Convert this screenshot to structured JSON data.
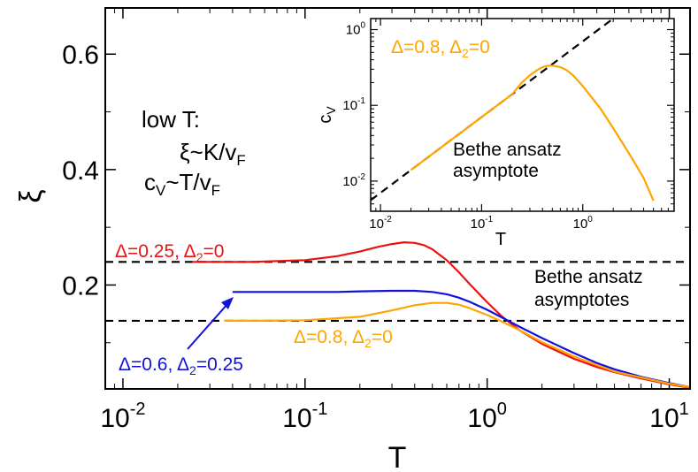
{
  "chart_data": [
    {
      "type": "line",
      "xscale": "log",
      "xlim": [
        0.008,
        13
      ],
      "ylim": [
        0.02,
        0.68
      ],
      "xlabel": "T",
      "ylabel": "ξ",
      "x_ticks": [
        {
          "value": 0.01,
          "base": "10",
          "exp": "-2"
        },
        {
          "value": 0.1,
          "base": "10",
          "exp": "-1"
        },
        {
          "value": 1,
          "base": "10",
          "exp": "0"
        },
        {
          "value": 10,
          "base": "10",
          "exp": "1"
        }
      ],
      "y_ticks": [
        {
          "value": 0.2,
          "label": "0.2"
        },
        {
          "value": 0.4,
          "label": "0.4"
        },
        {
          "value": 0.6,
          "label": "0.6"
        }
      ],
      "series": [
        {
          "name": "Δ=0.25, Δ2=0",
          "color": "#ee1111",
          "x": [
            0.024,
            0.05,
            0.1,
            0.15,
            0.2,
            0.25,
            0.3,
            0.35,
            0.4,
            0.45,
            0.5,
            0.6,
            0.7,
            0.8,
            1.0,
            1.2,
            1.5,
            2,
            3,
            4,
            5,
            7,
            10,
            13
          ],
          "y": [
            0.24,
            0.24,
            0.243,
            0.25,
            0.258,
            0.266,
            0.271,
            0.274,
            0.273,
            0.269,
            0.262,
            0.243,
            0.222,
            0.202,
            0.17,
            0.146,
            0.122,
            0.098,
            0.072,
            0.058,
            0.049,
            0.038,
            0.028,
            0.022
          ]
        },
        {
          "name": "Δ=0.6, Δ2=0.25",
          "color": "#1111dd",
          "x": [
            0.04,
            0.06,
            0.1,
            0.15,
            0.2,
            0.3,
            0.4,
            0.5,
            0.6,
            0.7,
            0.8,
            1.0,
            1.2,
            1.5,
            2,
            3,
            4,
            5,
            7,
            10,
            13
          ],
          "y": [
            0.188,
            0.188,
            0.188,
            0.188,
            0.189,
            0.19,
            0.19,
            0.188,
            0.184,
            0.178,
            0.171,
            0.157,
            0.144,
            0.128,
            0.108,
            0.082,
            0.065,
            0.054,
            0.041,
            0.03,
            0.023
          ]
        },
        {
          "name": "Δ=0.8, Δ2=0",
          "color": "#ffa500",
          "x": [
            0.036,
            0.06,
            0.1,
            0.2,
            0.3,
            0.4,
            0.5,
            0.6,
            0.7,
            0.8,
            1.0,
            1.2,
            1.5,
            2,
            3,
            5,
            10,
            13
          ],
          "y": [
            0.138,
            0.138,
            0.139,
            0.145,
            0.156,
            0.165,
            0.169,
            0.169,
            0.166,
            0.16,
            0.148,
            0.137,
            0.122,
            0.101,
            0.076,
            0.05,
            0.029,
            0.023
          ]
        }
      ],
      "asymptotes": [
        {
          "y": 0.24,
          "x_from": 0.008,
          "x_to": 13
        },
        {
          "y": 0.138,
          "x_from": 0.008,
          "x_to": 13
        }
      ],
      "annotations": {
        "low_t_title": "low T:",
        "xi_relation_a": "ξ~K/v",
        "xi_relation_sub": "F",
        "cv_relation_c": "c",
        "cv_relation_v": "V",
        "cv_relation_mid": "~T/v",
        "cv_relation_sub": "F",
        "bethe_line1": "Bethe ansatz",
        "bethe_line2": "asymptotes",
        "red_label_a": "Δ=0.25, Δ",
        "red_label_sub": "2",
        "red_label_b": "=0",
        "blue_label_a": "Δ=0.6, Δ",
        "blue_label_sub": "2",
        "blue_label_b": "=0.25",
        "orange_label_a": "Δ=0.8, Δ",
        "orange_label_sub": "2",
        "orange_label_b": "=0"
      }
    },
    {
      "type": "line",
      "xscale": "log",
      "yscale": "log",
      "xlim": [
        0.008,
        8
      ],
      "ylim": [
        0.004,
        1.4
      ],
      "xlabel": "T",
      "ylabel_c": "c",
      "ylabel_sub": "V",
      "x_ticks": [
        {
          "value": 0.01,
          "base": "10",
          "exp": "-2"
        },
        {
          "value": 0.1,
          "base": "10",
          "exp": "-1"
        },
        {
          "value": 1,
          "base": "10",
          "exp": "0"
        }
      ],
      "y_ticks": [
        {
          "value": 0.01,
          "base": "10",
          "exp": "-2"
        },
        {
          "value": 0.1,
          "base": "10",
          "exp": "-1"
        },
        {
          "value": 1,
          "base": "10",
          "exp": "0"
        }
      ],
      "series": [
        {
          "name": "Δ=0.8, Δ2=0",
          "color": "#ffa500",
          "x": [
            0.02,
            0.05,
            0.1,
            0.15,
            0.2,
            0.25,
            0.3,
            0.35,
            0.4,
            0.45,
            0.5,
            0.6,
            0.7,
            0.8,
            1.0,
            1.5,
            2,
            3,
            4,
            5
          ],
          "y": [
            0.014,
            0.035,
            0.07,
            0.105,
            0.14,
            0.2,
            0.25,
            0.29,
            0.32,
            0.333,
            0.335,
            0.32,
            0.29,
            0.25,
            0.18,
            0.09,
            0.05,
            0.021,
            0.011,
            0.0055
          ]
        }
      ],
      "asymptote": {
        "x": [
          0.008,
          2
        ],
        "y": [
          0.0056,
          1.4
        ]
      },
      "annotations": {
        "label_a": "Δ=0.8, Δ",
        "label_sub": "2",
        "label_b": "=0",
        "bethe_line1": "Bethe ansatz",
        "bethe_line2": "asymptote"
      }
    }
  ]
}
